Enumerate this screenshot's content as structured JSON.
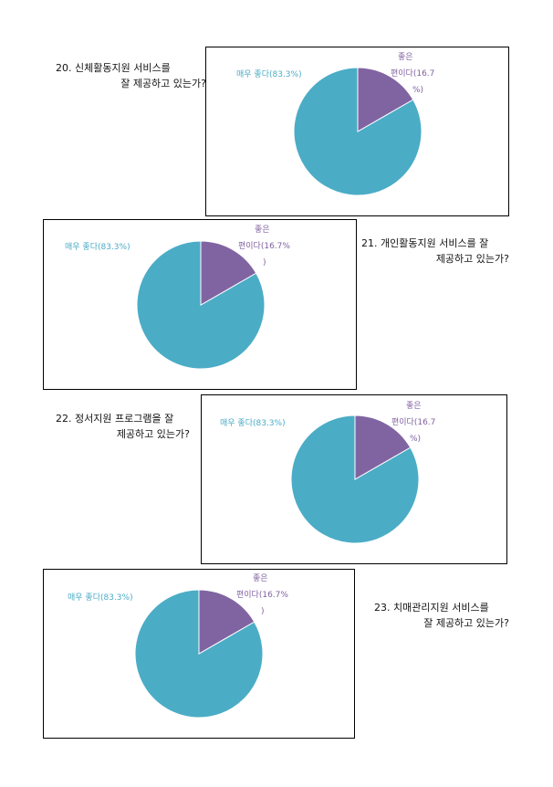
{
  "colors": {
    "very_good": "#4bacc6",
    "good": "#8064a2"
  },
  "questions": [
    {
      "line1": "20. 신체활동지원 서비스를",
      "line2": "잘 제공하고 있는가?"
    },
    {
      "line1": "21. 개인활동지원 서비스를 잘",
      "line2": "제공하고 있는가?"
    },
    {
      "line1": "22. 정서지원 프로그램을 잘",
      "line2": "제공하고 있는가?"
    },
    {
      "line1": "23. 치매관리지원 서비스를",
      "line2": "잘 제공하고 있는가?"
    }
  ],
  "chart_data": [
    {
      "type": "pie",
      "slices": [
        {
          "label": "매우 좋다",
          "value": 83.3,
          "display": "매우 좋다(83.3%)"
        },
        {
          "label": "좋은 편이다",
          "value": 16.7,
          "display_lines": [
            "좋은",
            "편이다(16.7",
            "%)"
          ]
        }
      ]
    },
    {
      "type": "pie",
      "slices": [
        {
          "label": "매우 좋다",
          "value": 83.3,
          "display": "매우 좋다(83.3%)"
        },
        {
          "label": "좋은 편이다",
          "value": 16.7,
          "display_lines": [
            "좋은",
            "편이다(16.7%",
            ")"
          ]
        }
      ]
    },
    {
      "type": "pie",
      "slices": [
        {
          "label": "매우 좋다",
          "value": 83.3,
          "display": "매우 좋다(83.3%)"
        },
        {
          "label": "좋은 편이다",
          "value": 16.7,
          "display_lines": [
            "좋은",
            "편이다(16.7",
            "%)"
          ]
        }
      ]
    },
    {
      "type": "pie",
      "slices": [
        {
          "label": "매우 좋다",
          "value": 83.3,
          "display": "매우 좋다(83.3%)"
        },
        {
          "label": "좋은 편이다",
          "value": 16.7,
          "display_lines": [
            "좋은",
            "편이다(16.7%",
            ")"
          ]
        }
      ]
    }
  ]
}
